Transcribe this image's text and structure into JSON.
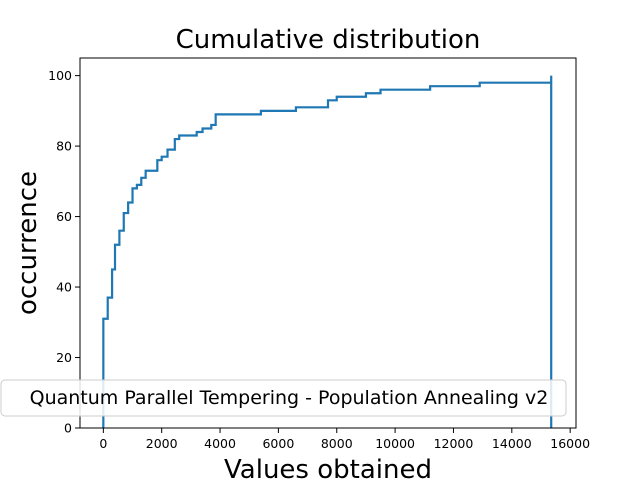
{
  "chart_data": {
    "type": "line",
    "drawstyle": "step",
    "title": "Cumulative distribution",
    "xlabel": "Values obtained",
    "ylabel": "occurrence",
    "xlim": [
      -800,
      16200
    ],
    "ylim": [
      0,
      105
    ],
    "xticks": [
      0,
      2000,
      4000,
      6000,
      8000,
      10000,
      12000,
      14000,
      16000
    ],
    "yticks": [
      0,
      20,
      40,
      60,
      80,
      100
    ],
    "legend_placement": "lower-center",
    "grid": false,
    "series": [
      {
        "name": "Quantum Parallel Tempering - Population Annealing v2",
        "color": "#1f77b4",
        "x": [
          0,
          0,
          150,
          300,
          400,
          550,
          700,
          850,
          1000,
          1150,
          1300,
          1450,
          1600,
          1850,
          2000,
          2200,
          2450,
          2600,
          3000,
          3200,
          3400,
          3700,
          3850,
          5400,
          6600,
          7700,
          8000,
          9000,
          9500,
          11200,
          12900,
          15350,
          15350
        ],
        "y": [
          0,
          31,
          37,
          45,
          52,
          56,
          61,
          64,
          68,
          69,
          71,
          73,
          73,
          76,
          77,
          79,
          82,
          83,
          83,
          84,
          85,
          86,
          89,
          90,
          91,
          93,
          94,
          95,
          96,
          97,
          98,
          100,
          0
        ]
      }
    ]
  }
}
